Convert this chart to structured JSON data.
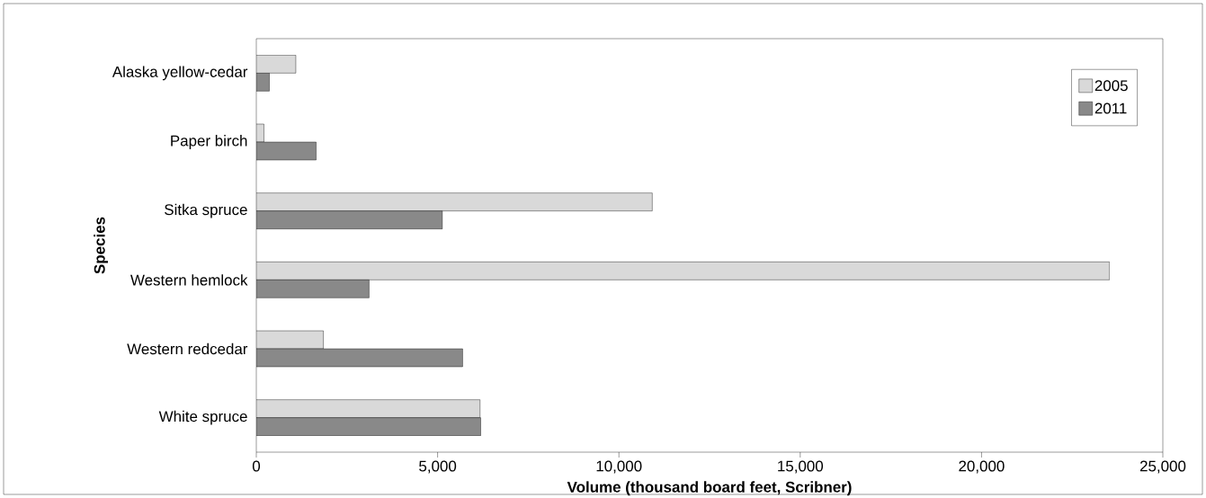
{
  "chart_data": {
    "type": "bar",
    "orientation": "horizontal",
    "xlabel": "Volume (thousand board feet, Scribner)",
    "ylabel": "Species",
    "categories": [
      "Alaska yellow-cedar",
      "Paper birch",
      "Sitka spruce",
      "Western hemlock",
      "Western redcedar",
      "White spruce"
    ],
    "series": [
      {
        "name": "2005",
        "color": "#d9d9d9",
        "values": [
          1090,
          210,
          10920,
          23530,
          1850,
          6170
        ]
      },
      {
        "name": "2011",
        "color": "#898989",
        "values": [
          360,
          1650,
          5130,
          3110,
          5690,
          6190
        ]
      }
    ],
    "xlim": [
      0,
      25000
    ],
    "xticks": [
      {
        "value": 0,
        "label": "0"
      },
      {
        "value": 5000,
        "label": "5,000"
      },
      {
        "value": 10000,
        "label": "10,000"
      },
      {
        "value": 15000,
        "label": "15,000"
      },
      {
        "value": 20000,
        "label": "20,000"
      },
      {
        "value": 25000,
        "label": "25,000"
      }
    ],
    "grid": false,
    "legend": "top right"
  }
}
